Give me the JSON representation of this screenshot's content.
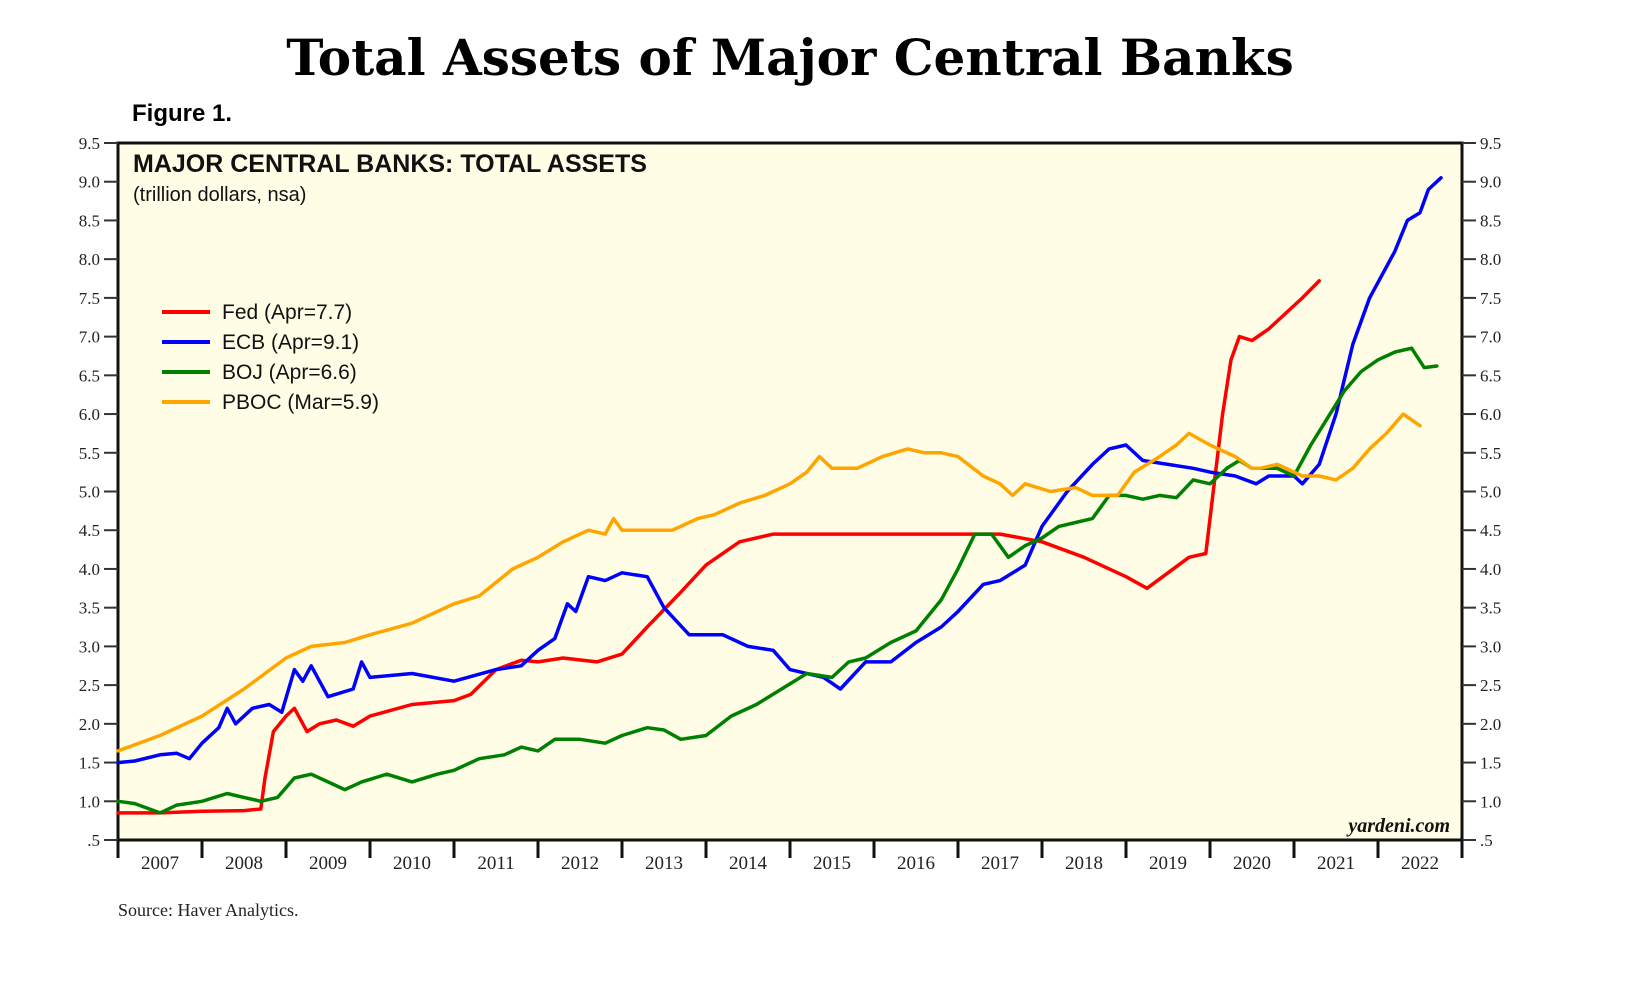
{
  "page_title": "Total Assets of Major Central Banks",
  "figure_label": "Figure 1.",
  "source_note": "Source: Haver Analytics.",
  "chart_data": {
    "type": "line",
    "title": "MAJOR CENTRAL BANKS: TOTAL ASSETS",
    "subtitle": "(trillion dollars, nsa)",
    "watermark": "yardeni.com",
    "xlabel": "",
    "ylabel": "",
    "xlim": [
      2007,
      2023
    ],
    "ylim": [
      0.5,
      9.5
    ],
    "grid": false,
    "background_color": "#fffde6",
    "legend_position": "top-left",
    "y_ticks": [
      0.5,
      1.0,
      1.5,
      2.0,
      2.5,
      3.0,
      3.5,
      4.0,
      4.5,
      5.0,
      5.5,
      6.0,
      6.5,
      7.0,
      7.5,
      8.0,
      8.5,
      9.0,
      9.5
    ],
    "y_tick_labels": [
      ".5",
      "1.0",
      "1.5",
      "2.0",
      "2.5",
      "3.0",
      "3.5",
      "4.0",
      "4.5",
      "5.0",
      "5.5",
      "6.0",
      "6.5",
      "7.0",
      "7.5",
      "8.0",
      "8.5",
      "9.0",
      "9.5"
    ],
    "x_tick_labels": [
      "2007",
      "2008",
      "2009",
      "2010",
      "2011",
      "2012",
      "2013",
      "2014",
      "2015",
      "2016",
      "2017",
      "2018",
      "2019",
      "2020",
      "2021",
      "2022"
    ],
    "series": [
      {
        "name": "Fed",
        "legend": "Fed (Apr=7.7)",
        "color": "#ff0000",
        "points": [
          [
            2007.0,
            0.85
          ],
          [
            2007.5,
            0.85
          ],
          [
            2008.0,
            0.87
          ],
          [
            2008.5,
            0.88
          ],
          [
            2008.7,
            0.9
          ],
          [
            2008.75,
            1.3
          ],
          [
            2008.85,
            1.9
          ],
          [
            2009.0,
            2.1
          ],
          [
            2009.1,
            2.2
          ],
          [
            2009.25,
            1.9
          ],
          [
            2009.4,
            2.0
          ],
          [
            2009.6,
            2.05
          ],
          [
            2009.8,
            1.97
          ],
          [
            2010.0,
            2.1
          ],
          [
            2010.5,
            2.25
          ],
          [
            2011.0,
            2.3
          ],
          [
            2011.2,
            2.38
          ],
          [
            2011.5,
            2.7
          ],
          [
            2011.8,
            2.82
          ],
          [
            2012.0,
            2.8
          ],
          [
            2012.3,
            2.85
          ],
          [
            2012.7,
            2.8
          ],
          [
            2013.0,
            2.9
          ],
          [
            2013.3,
            3.25
          ],
          [
            2013.7,
            3.7
          ],
          [
            2014.0,
            4.05
          ],
          [
            2014.4,
            4.35
          ],
          [
            2014.8,
            4.45
          ],
          [
            2015.5,
            4.45
          ],
          [
            2016.5,
            4.45
          ],
          [
            2017.5,
            4.45
          ],
          [
            2018.0,
            4.35
          ],
          [
            2018.5,
            4.15
          ],
          [
            2019.0,
            3.9
          ],
          [
            2019.25,
            3.75
          ],
          [
            2019.5,
            3.95
          ],
          [
            2019.75,
            4.15
          ],
          [
            2019.95,
            4.2
          ],
          [
            2020.15,
            6.0
          ],
          [
            2020.25,
            6.7
          ],
          [
            2020.35,
            7.0
          ],
          [
            2020.5,
            6.95
          ],
          [
            2020.7,
            7.1
          ],
          [
            2020.9,
            7.3
          ],
          [
            2021.1,
            7.5
          ],
          [
            2021.3,
            7.72
          ]
        ]
      },
      {
        "name": "ECB",
        "legend": "ECB (Apr=9.1)",
        "color": "#0000ff",
        "points": [
          [
            2007.0,
            1.5
          ],
          [
            2007.2,
            1.52
          ],
          [
            2007.5,
            1.6
          ],
          [
            2007.7,
            1.62
          ],
          [
            2007.85,
            1.55
          ],
          [
            2008.0,
            1.75
          ],
          [
            2008.2,
            1.95
          ],
          [
            2008.3,
            2.2
          ],
          [
            2008.4,
            2.0
          ],
          [
            2008.6,
            2.2
          ],
          [
            2008.8,
            2.25
          ],
          [
            2008.95,
            2.15
          ],
          [
            2009.1,
            2.7
          ],
          [
            2009.2,
            2.55
          ],
          [
            2009.3,
            2.75
          ],
          [
            2009.5,
            2.35
          ],
          [
            2009.8,
            2.45
          ],
          [
            2009.9,
            2.8
          ],
          [
            2010.0,
            2.6
          ],
          [
            2010.5,
            2.65
          ],
          [
            2011.0,
            2.55
          ],
          [
            2011.5,
            2.7
          ],
          [
            2011.8,
            2.75
          ],
          [
            2012.0,
            2.95
          ],
          [
            2012.2,
            3.1
          ],
          [
            2012.35,
            3.55
          ],
          [
            2012.45,
            3.45
          ],
          [
            2012.6,
            3.9
          ],
          [
            2012.8,
            3.85
          ],
          [
            2013.0,
            3.95
          ],
          [
            2013.3,
            3.9
          ],
          [
            2013.5,
            3.5
          ],
          [
            2013.8,
            3.15
          ],
          [
            2014.2,
            3.15
          ],
          [
            2014.5,
            3.0
          ],
          [
            2014.8,
            2.95
          ],
          [
            2015.0,
            2.7
          ],
          [
            2015.4,
            2.6
          ],
          [
            2015.6,
            2.45
          ],
          [
            2015.9,
            2.8
          ],
          [
            2016.2,
            2.8
          ],
          [
            2016.5,
            3.05
          ],
          [
            2016.8,
            3.25
          ],
          [
            2017.0,
            3.45
          ],
          [
            2017.3,
            3.8
          ],
          [
            2017.5,
            3.85
          ],
          [
            2017.8,
            4.05
          ],
          [
            2018.0,
            4.55
          ],
          [
            2018.3,
            5.0
          ],
          [
            2018.6,
            5.35
          ],
          [
            2018.8,
            5.55
          ],
          [
            2019.0,
            5.6
          ],
          [
            2019.2,
            5.4
          ],
          [
            2019.5,
            5.35
          ],
          [
            2019.8,
            5.3
          ],
          [
            2020.0,
            5.25
          ],
          [
            2020.3,
            5.2
          ],
          [
            2020.55,
            5.1
          ],
          [
            2020.7,
            5.2
          ],
          [
            2021.0,
            5.2
          ],
          [
            2021.1,
            5.1
          ],
          [
            2021.3,
            5.35
          ],
          [
            2021.5,
            6.0
          ],
          [
            2021.7,
            6.9
          ],
          [
            2021.9,
            7.5
          ],
          [
            2022.0,
            7.7
          ],
          [
            2022.2,
            8.1
          ],
          [
            2022.35,
            8.5
          ],
          [
            2022.5,
            8.6
          ],
          [
            2022.6,
            8.9
          ],
          [
            2022.75,
            9.05
          ]
        ]
      },
      {
        "name": "BOJ",
        "legend": "BOJ (Apr=6.6)",
        "color": "#008000",
        "points": [
          [
            2007.0,
            1.0
          ],
          [
            2007.2,
            0.97
          ],
          [
            2007.5,
            0.85
          ],
          [
            2007.7,
            0.95
          ],
          [
            2008.0,
            1.0
          ],
          [
            2008.3,
            1.1
          ],
          [
            2008.5,
            1.05
          ],
          [
            2008.7,
            1.0
          ],
          [
            2008.9,
            1.05
          ],
          [
            2009.1,
            1.3
          ],
          [
            2009.3,
            1.35
          ],
          [
            2009.5,
            1.25
          ],
          [
            2009.7,
            1.15
          ],
          [
            2009.9,
            1.25
          ],
          [
            2010.2,
            1.35
          ],
          [
            2010.5,
            1.25
          ],
          [
            2010.8,
            1.35
          ],
          [
            2011.0,
            1.4
          ],
          [
            2011.3,
            1.55
          ],
          [
            2011.6,
            1.6
          ],
          [
            2011.8,
            1.7
          ],
          [
            2012.0,
            1.65
          ],
          [
            2012.2,
            1.8
          ],
          [
            2012.5,
            1.8
          ],
          [
            2012.8,
            1.75
          ],
          [
            2013.0,
            1.85
          ],
          [
            2013.3,
            1.95
          ],
          [
            2013.5,
            1.92
          ],
          [
            2013.7,
            1.8
          ],
          [
            2014.0,
            1.85
          ],
          [
            2014.3,
            2.1
          ],
          [
            2014.6,
            2.25
          ],
          [
            2014.9,
            2.45
          ],
          [
            2015.2,
            2.65
          ],
          [
            2015.5,
            2.6
          ],
          [
            2015.7,
            2.8
          ],
          [
            2015.9,
            2.85
          ],
          [
            2016.2,
            3.05
          ],
          [
            2016.5,
            3.2
          ],
          [
            2016.8,
            3.6
          ],
          [
            2017.0,
            4.0
          ],
          [
            2017.2,
            4.45
          ],
          [
            2017.4,
            4.45
          ],
          [
            2017.6,
            4.15
          ],
          [
            2017.8,
            4.3
          ],
          [
            2018.0,
            4.4
          ],
          [
            2018.2,
            4.55
          ],
          [
            2018.4,
            4.6
          ],
          [
            2018.6,
            4.65
          ],
          [
            2018.8,
            4.95
          ],
          [
            2019.0,
            4.95
          ],
          [
            2019.2,
            4.9
          ],
          [
            2019.4,
            4.95
          ],
          [
            2019.6,
            4.92
          ],
          [
            2019.8,
            5.15
          ],
          [
            2020.0,
            5.1
          ],
          [
            2020.2,
            5.3
          ],
          [
            2020.35,
            5.4
          ],
          [
            2020.5,
            5.3
          ],
          [
            2020.8,
            5.3
          ],
          [
            2021.0,
            5.2
          ],
          [
            2021.2,
            5.6
          ],
          [
            2021.4,
            5.95
          ],
          [
            2021.6,
            6.3
          ],
          [
            2021.8,
            6.55
          ],
          [
            2022.0,
            6.7
          ],
          [
            2022.2,
            6.8
          ],
          [
            2022.4,
            6.85
          ],
          [
            2022.55,
            6.6
          ],
          [
            2022.7,
            6.62
          ]
        ]
      },
      {
        "name": "PBOC",
        "legend": "PBOC (Mar=5.9)",
        "color": "#ffa500",
        "points": [
          [
            2007.0,
            1.65
          ],
          [
            2007.5,
            1.85
          ],
          [
            2008.0,
            2.1
          ],
          [
            2008.5,
            2.45
          ],
          [
            2009.0,
            2.85
          ],
          [
            2009.3,
            3.0
          ],
          [
            2009.7,
            3.05
          ],
          [
            2010.0,
            3.15
          ],
          [
            2010.5,
            3.3
          ],
          [
            2011.0,
            3.55
          ],
          [
            2011.3,
            3.65
          ],
          [
            2011.7,
            4.0
          ],
          [
            2012.0,
            4.15
          ],
          [
            2012.3,
            4.35
          ],
          [
            2012.6,
            4.5
          ],
          [
            2012.8,
            4.45
          ],
          [
            2012.9,
            4.65
          ],
          [
            2013.0,
            4.5
          ],
          [
            2013.4,
            4.5
          ],
          [
            2013.6,
            4.5
          ],
          [
            2013.9,
            4.65
          ],
          [
            2014.1,
            4.7
          ],
          [
            2014.4,
            4.85
          ],
          [
            2014.7,
            4.95
          ],
          [
            2015.0,
            5.1
          ],
          [
            2015.2,
            5.25
          ],
          [
            2015.35,
            5.45
          ],
          [
            2015.5,
            5.3
          ],
          [
            2015.8,
            5.3
          ],
          [
            2016.1,
            5.45
          ],
          [
            2016.4,
            5.55
          ],
          [
            2016.6,
            5.5
          ],
          [
            2016.8,
            5.5
          ],
          [
            2017.0,
            5.45
          ],
          [
            2017.3,
            5.2
          ],
          [
            2017.5,
            5.1
          ],
          [
            2017.65,
            4.95
          ],
          [
            2017.8,
            5.1
          ],
          [
            2018.1,
            5.0
          ],
          [
            2018.4,
            5.05
          ],
          [
            2018.6,
            4.95
          ],
          [
            2018.9,
            4.95
          ],
          [
            2019.1,
            5.25
          ],
          [
            2019.4,
            5.45
          ],
          [
            2019.6,
            5.6
          ],
          [
            2019.75,
            5.75
          ],
          [
            2020.0,
            5.6
          ],
          [
            2020.3,
            5.45
          ],
          [
            2020.5,
            5.3
          ],
          [
            2020.6,
            5.3
          ],
          [
            2020.8,
            5.35
          ],
          [
            2021.0,
            5.25
          ],
          [
            2021.1,
            5.2
          ],
          [
            2021.3,
            5.2
          ],
          [
            2021.5,
            5.15
          ],
          [
            2021.7,
            5.3
          ],
          [
            2021.9,
            5.55
          ],
          [
            2022.1,
            5.75
          ],
          [
            2022.3,
            6.0
          ],
          [
            2022.5,
            5.85
          ]
        ]
      }
    ]
  }
}
